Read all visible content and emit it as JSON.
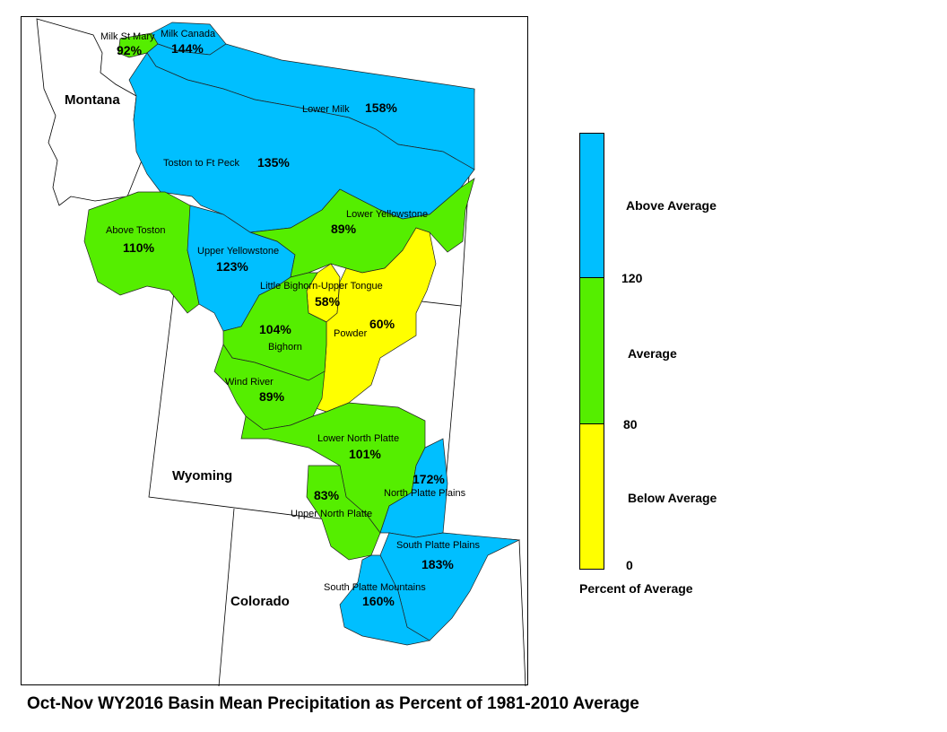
{
  "title": "Oct-Nov WY2016 Basin Mean Precipitation as Percent of 1981-2010 Average",
  "states": [
    {
      "key": "montana",
      "name": "Montana"
    },
    {
      "key": "wyoming",
      "name": "Wyoming"
    },
    {
      "key": "colorado",
      "name": "Colorado"
    }
  ],
  "basins": [
    {
      "key": "milk-st-mary",
      "name": "Milk St Mary",
      "percent": "92%",
      "category": "average"
    },
    {
      "key": "milk-canada",
      "name": "Milk Canada",
      "percent": "144%",
      "category": "above"
    },
    {
      "key": "lower-milk",
      "name": "Lower Milk",
      "percent": "158%",
      "category": "above"
    },
    {
      "key": "toston-to-ft-peck",
      "name": "Toston to Ft Peck",
      "percent": "135%",
      "category": "above"
    },
    {
      "key": "above-toston",
      "name": "Above Toston",
      "percent": "110%",
      "category": "average"
    },
    {
      "key": "upper-yellowstone",
      "name": "Upper Yellowstone",
      "percent": "123%",
      "category": "above"
    },
    {
      "key": "lower-yellowstone",
      "name": "Lower Yellowstone",
      "percent": "89%",
      "category": "average"
    },
    {
      "key": "little-bighorn-upper-tongue",
      "name": "Little Bighorn-Upper Tongue",
      "percent": "58%",
      "category": "below"
    },
    {
      "key": "powder",
      "name": "Powder",
      "percent": "60%",
      "category": "below"
    },
    {
      "key": "bighorn",
      "name": "Bighorn",
      "percent": "104%",
      "category": "average"
    },
    {
      "key": "wind-river",
      "name": "Wind River",
      "percent": "89%",
      "category": "average"
    },
    {
      "key": "lower-north-platte",
      "name": "Lower North Platte",
      "percent": "101%",
      "category": "average"
    },
    {
      "key": "north-platte-plains",
      "name": "North Platte Plains",
      "percent": "172%",
      "category": "above"
    },
    {
      "key": "upper-north-platte",
      "name": "Upper North Platte",
      "percent": "83%",
      "category": "average"
    },
    {
      "key": "south-platte-plains",
      "name": "South Platte Plains",
      "percent": "183%",
      "category": "above"
    },
    {
      "key": "south-platte-mountains",
      "name": "South Platte Mountains",
      "percent": "160%",
      "category": "above"
    }
  ],
  "colors": {
    "above": "#00bfff",
    "average": "#55ee00",
    "below": "#ffff00",
    "outline": "#000000",
    "state_line": "#000000"
  },
  "legend": {
    "title": "Percent of Average",
    "classes": [
      {
        "label": "Above Average",
        "color": "#00bfff"
      },
      {
        "label": "Average",
        "color": "#55ee00"
      },
      {
        "label": "Below Average",
        "color": "#ffff00"
      }
    ],
    "breaks": [
      "120",
      "80",
      "0"
    ]
  }
}
